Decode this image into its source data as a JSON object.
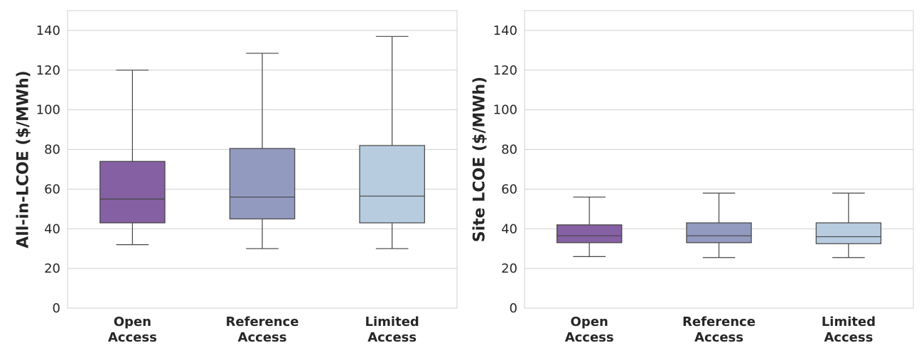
{
  "chart_data": [
    {
      "type": "box",
      "ylabel": "All-in-LCOE ($/MWh)",
      "categories": [
        [
          "Open",
          "Access"
        ],
        [
          "Reference",
          "Access"
        ],
        [
          "Limited",
          "Access"
        ]
      ],
      "colors": [
        "#8560a3",
        "#929ac0",
        "#b8cce0"
      ],
      "ylim": [
        0,
        150
      ],
      "yticks": [
        0,
        20,
        40,
        60,
        80,
        100,
        120,
        140
      ],
      "grid": true,
      "boxes": [
        {
          "whisker_low": 32,
          "q1": 43,
          "median": 55,
          "q3": 74,
          "whisker_high": 120
        },
        {
          "whisker_low": 30,
          "q1": 45,
          "median": 56,
          "q3": 80.5,
          "whisker_high": 128.5
        },
        {
          "whisker_low": 30,
          "q1": 43,
          "median": 56.5,
          "q3": 82,
          "whisker_high": 137
        }
      ]
    },
    {
      "type": "box",
      "ylabel": "Site LCOE ($/MWh)",
      "categories": [
        [
          "Open",
          "Access"
        ],
        [
          "Reference",
          "Access"
        ],
        [
          "Limited",
          "Access"
        ]
      ],
      "colors": [
        "#8560a3",
        "#929ac0",
        "#b8cce0"
      ],
      "ylim": [
        0,
        150
      ],
      "yticks": [
        0,
        20,
        40,
        60,
        80,
        100,
        120,
        140
      ],
      "grid": true,
      "boxes": [
        {
          "whisker_low": 26,
          "q1": 33,
          "median": 36.5,
          "q3": 42,
          "whisker_high": 56
        },
        {
          "whisker_low": 25.5,
          "q1": 33,
          "median": 36.5,
          "q3": 43,
          "whisker_high": 58
        },
        {
          "whisker_low": 25.5,
          "q1": 32.5,
          "median": 36,
          "q3": 43,
          "whisker_high": 58
        }
      ]
    }
  ]
}
